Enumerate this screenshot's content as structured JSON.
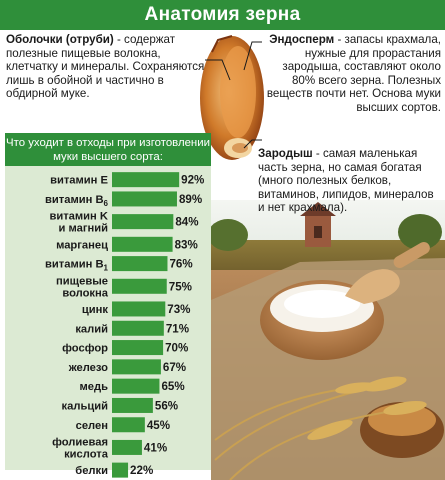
{
  "title": "Анатомия зерна",
  "annotations": {
    "husk": {
      "term": "Оболочки (отруби)",
      "text": " - содержат полезные пищевые волокна, клетчатку и минералы. Сохраняются лишь в обойной и частично в обдирной муке."
    },
    "endosperm": {
      "term": "Эндосперм",
      "text": " - запасы крахмала, нужные для прорастания зародыша, составляют около 80% всего зерна. Полезных веществ почти нет. Основа муки высших сортов."
    },
    "germ": {
      "term": "Зародыш",
      "text": " - самая маленькая часть зерна, но самая богатая (много полезных белков, витаминов, липидов, минералов и нет крахмала)."
    }
  },
  "colors": {
    "accent": "#2f8f3a",
    "panel": "#dcead3",
    "bar": "#3a9a3c"
  },
  "chart_data": {
    "type": "bar",
    "orientation": "horizontal",
    "title": "Что уходит в отходы при изготовлении муки высшего сорта:",
    "categories": [
      "витамин E",
      "витамин B6",
      "витамин K и магний",
      "марганец",
      "витамин B1",
      "пищевые волокна",
      "цинк",
      "калий",
      "фосфор",
      "железо",
      "медь",
      "кальций",
      "селен",
      "фолиевая кислота",
      "белки"
    ],
    "category_lines": [
      [
        "витамин E"
      ],
      [
        "витамин B",
        "6"
      ],
      [
        "витамин K",
        "и магний"
      ],
      [
        "марганец"
      ],
      [
        "витамин B",
        "1"
      ],
      [
        "пищевые",
        "волокна"
      ],
      [
        "цинк"
      ],
      [
        "калий"
      ],
      [
        "фосфор"
      ],
      [
        "железо"
      ],
      [
        "медь"
      ],
      [
        "кальций"
      ],
      [
        "селен"
      ],
      [
        "фолиевая",
        "кислота"
      ],
      [
        "белки"
      ]
    ],
    "values": [
      92,
      89,
      84,
      83,
      76,
      75,
      73,
      71,
      70,
      67,
      65,
      56,
      45,
      41,
      22
    ],
    "value_labels": [
      "92%",
      "89%",
      "84%",
      "83%",
      "76%",
      "75%",
      "73%",
      "71%",
      "70%",
      "67%",
      "65%",
      "56%",
      "45%",
      "41%",
      "22%"
    ],
    "xlim": [
      0,
      100
    ],
    "grid": false,
    "legend": "none"
  }
}
